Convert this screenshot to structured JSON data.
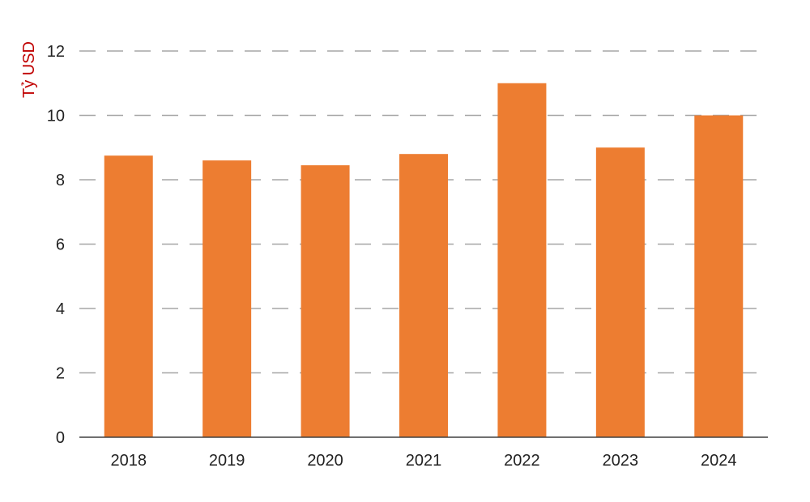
{
  "chart_data": {
    "type": "bar",
    "title": "",
    "xlabel": "",
    "ylabel": "Tỷ USD",
    "categories": [
      "2018",
      "2019",
      "2020",
      "2021",
      "2022",
      "2023",
      "2024"
    ],
    "values": [
      8.75,
      8.6,
      8.45,
      8.8,
      11.0,
      9.0,
      10.0
    ],
    "ylim": [
      0,
      12
    ],
    "yticks": [
      "0",
      "2",
      "4",
      "6",
      "8",
      "10",
      "12"
    ],
    "grid": true,
    "grid_style": "dashed",
    "legend": "none",
    "colors": {
      "bar": "#ED7D31",
      "ylabel": "#C00000",
      "grid": "#A6A6A6",
      "axis": "#404040"
    }
  }
}
